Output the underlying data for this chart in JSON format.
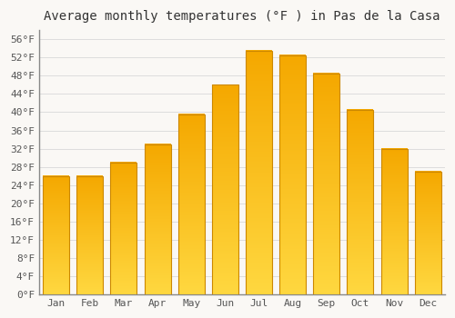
{
  "title": "Average monthly temperatures (°F ) in Pas de la Casa",
  "months": [
    "Jan",
    "Feb",
    "Mar",
    "Apr",
    "May",
    "Jun",
    "Jul",
    "Aug",
    "Sep",
    "Oct",
    "Nov",
    "Dec"
  ],
  "values": [
    26,
    26,
    29,
    33,
    39.5,
    46,
    53.5,
    52.5,
    48.5,
    40.5,
    32,
    27
  ],
  "bar_color_top": "#F5A800",
  "bar_color_bottom": "#FFD840",
  "bar_edge_color": "#CC8800",
  "background_color": "#faf8f5",
  "grid_color": "#dddddd",
  "ytick_min": 0,
  "ytick_max": 56,
  "ytick_step": 4,
  "title_fontsize": 10,
  "tick_fontsize": 8,
  "font_family": "monospace"
}
